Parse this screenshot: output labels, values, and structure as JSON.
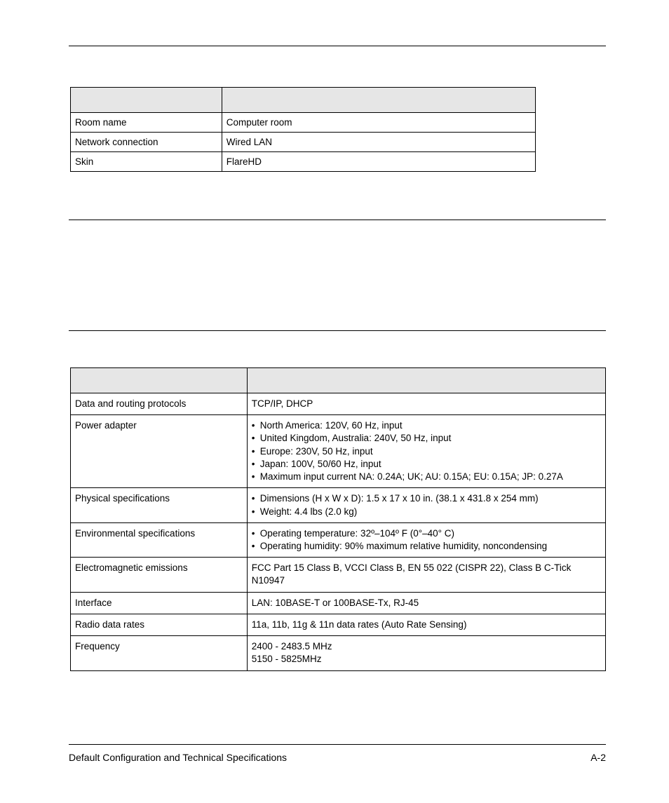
{
  "table1": {
    "header": {
      "col1": "",
      "col2": ""
    },
    "rows": [
      {
        "col1": "Room name",
        "col2": "Computer room"
      },
      {
        "col1": "Network connection",
        "col2": "Wired LAN"
      },
      {
        "col1": "Skin",
        "col2": "FlareHD"
      }
    ]
  },
  "table2": {
    "header": {
      "col1": "",
      "col2": ""
    },
    "rows": [
      {
        "col1": "Data and routing protocols",
        "col2_type": "text",
        "col2": "TCP/IP, DHCP"
      },
      {
        "col1": "Power adapter",
        "col2_type": "list",
        "col2_items": [
          "North America: 120V, 60 Hz, input",
          "United Kingdom, Australia: 240V, 50 Hz, input",
          "Europe: 230V, 50 Hz, input",
          "Japan: 100V, 50/60 Hz, input",
          "Maximum input current NA: 0.24A; UK; AU: 0.15A; EU: 0.15A; JP: 0.27A"
        ]
      },
      {
        "col1": "Physical specifications",
        "col2_type": "list",
        "col2_items": [
          "Dimensions (H x W x D): 1.5 x 17 x 10 in. (38.1 x 431.8 x 254 mm)",
          "Weight: 4.4 lbs (2.0 kg)"
        ]
      },
      {
        "col1": "Environmental specifications",
        "col2_type": "list",
        "col2_items": [
          "Operating temperature: 32º–104º F (0°–40° C)",
          "Operating humidity: 90% maximum relative humidity, noncondensing"
        ]
      },
      {
        "col1": "Electromagnetic emissions",
        "col2_type": "text",
        "col2": "FCC Part 15 Class B, VCCI Class B, EN 55 022 (CISPR 22), Class B C-Tick N10947"
      },
      {
        "col1": "Interface",
        "col2_type": "text",
        "col2": "LAN: 10BASE-T or 100BASE-Tx, RJ-45"
      },
      {
        "col1": "Radio data rates",
        "col2_type": "text",
        "col2": "11a, 11b, 11g & 11n data rates (Auto Rate Sensing)"
      },
      {
        "col1": "Frequency",
        "col2_type": "lines",
        "col2_lines": [
          "2400 - 2483.5 MHz",
          "5150 - 5825MHz"
        ]
      }
    ]
  },
  "footer": {
    "left": "Default Configuration and Technical Specifications",
    "right": "A-2"
  }
}
